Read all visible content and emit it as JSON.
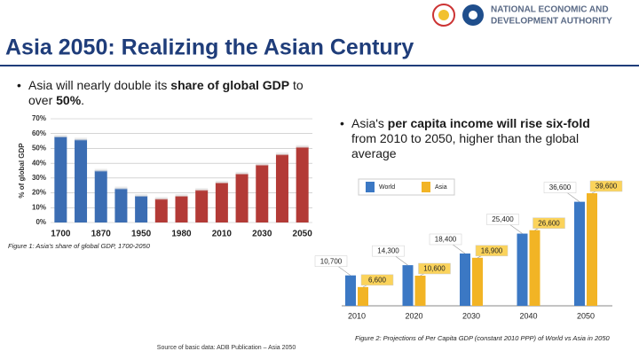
{
  "header": {
    "org_line1": "NATIONAL ECONOMIC AND",
    "org_line2": "DEVELOPMENT AUTHORITY"
  },
  "title": "Asia 2050: Realizing the Asian Century",
  "bullets": [
    [
      {
        "text": "Asia will nearly double its ",
        "bold": false
      },
      {
        "text": "share of global GDP",
        "bold": true
      },
      {
        "text": " to over ",
        "bold": false
      },
      {
        "text": "50%",
        "bold": true
      },
      {
        "text": ".",
        "bold": false
      }
    ],
    [
      {
        "text": "Asia's ",
        "bold": false
      },
      {
        "text": "per capita income will rise six-fold",
        "bold": true
      },
      {
        "text": " from 2010 to 2050, higher than the global average",
        "bold": false
      }
    ]
  ],
  "source": "Source of basic data: ADB Publication – Asia 2050",
  "chart_data": [
    {
      "type": "bar",
      "caption": "Figure 1: Asia's share of global GDP, 1700-2050",
      "ylabel": "% of global GDP",
      "categories": [
        "1700",
        null,
        "1870",
        null,
        "1950",
        null,
        "1980",
        null,
        "2010",
        null,
        "2030",
        null,
        "2050"
      ],
      "values": [
        58,
        56,
        35,
        23,
        18,
        16,
        18,
        22,
        27,
        33,
        39,
        46,
        51
      ],
      "colors": [
        "#3b6db3",
        "#3b6db3",
        "#3b6db3",
        "#3b6db3",
        "#3b6db3",
        "#b33a36",
        "#b33a36",
        "#b33a36",
        "#b33a36",
        "#b33a36",
        "#b33a36",
        "#b33a36",
        "#b33a36"
      ],
      "ylim": [
        0,
        70
      ],
      "yticks": [
        {
          "value": 0,
          "label": "0%"
        },
        {
          "value": 10,
          "label": "10%"
        },
        {
          "value": 20,
          "label": "20%"
        },
        {
          "value": 30,
          "label": "30%"
        },
        {
          "value": 40,
          "label": "40%"
        },
        {
          "value": 50,
          "label": "50%"
        },
        {
          "value": 60,
          "label": "60%"
        },
        {
          "value": 70,
          "label": "70%"
        }
      ],
      "grid": true
    },
    {
      "type": "grouped-bar",
      "caption": "Figure 2: Projections of Per Capita GDP (constant 2010 PPP) of World vs Asia in 2050",
      "categories": [
        "2010",
        "2020",
        "2030",
        "2040",
        "2050"
      ],
      "series": [
        {
          "name": "World",
          "color": "#3b78c4",
          "values": [
            10700,
            14300,
            18400,
            25400,
            36600
          ],
          "value_labels": [
            "10,700",
            "14,300",
            "18,400",
            "25,400",
            "36,600"
          ]
        },
        {
          "name": "Asia",
          "color": "#f2b425",
          "values": [
            6600,
            10600,
            16900,
            26600,
            39600
          ],
          "value_labels": [
            "6,600",
            "10,600",
            "16,900",
            "26,600",
            "39,600"
          ]
        }
      ]
    }
  ]
}
